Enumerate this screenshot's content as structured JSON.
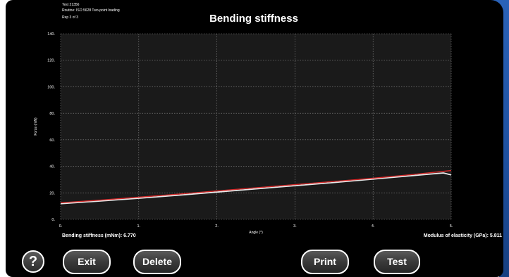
{
  "header": {
    "test_line": "Test 21356",
    "routine_line": "Routine: ISO 5628 Two-point loading",
    "rep_line": "Rep 3 of 3",
    "title": "Bending stiffness"
  },
  "chart_data": {
    "type": "line",
    "xlabel": "Angle (°)",
    "ylabel": "Force (mN)",
    "xlim": [
      0,
      5
    ],
    "ylim": [
      0,
      140
    ],
    "x_ticks": [
      "0.",
      "1.",
      "2.",
      "3.",
      "4.",
      "5."
    ],
    "y_ticks": [
      "0.",
      "20.",
      "40.",
      "60.",
      "80.",
      "100.",
      "120.",
      "140."
    ],
    "grid": true,
    "series": [
      {
        "color": "#d42a2a",
        "x": [
          0,
          0.5,
          1,
          1.5,
          2,
          2.5,
          3,
          3.5,
          4,
          4.5,
          5
        ],
        "y": [
          12.5,
          14.5,
          16.7,
          19.0,
          21.4,
          23.8,
          26.2,
          28.6,
          31.0,
          33.8,
          36.8
        ]
      },
      {
        "color": "#e8e8e8",
        "x": [
          0,
          0.5,
          1,
          1.5,
          2,
          2.5,
          3,
          3.5,
          4,
          4.5,
          4.9,
          5
        ],
        "y": [
          11.8,
          13.8,
          15.9,
          18.2,
          20.6,
          23.0,
          25.4,
          27.8,
          30.4,
          33.0,
          35.0,
          33.5
        ]
      }
    ]
  },
  "results": {
    "bending_stiffness": "Bending stiffness (mNm): 6.770",
    "modulus": "Modulus of elasticity (GPa): 5.811"
  },
  "buttons": {
    "help": "?",
    "exit": "Exit",
    "delete": "Delete",
    "print": "Print",
    "test": "Test"
  },
  "colors": {
    "background": "#000000",
    "frame_blue": "#2a62b8",
    "grid": "#8a8a8a",
    "fit_line": "#d42a2a",
    "measured_line": "#e8e8e8"
  }
}
